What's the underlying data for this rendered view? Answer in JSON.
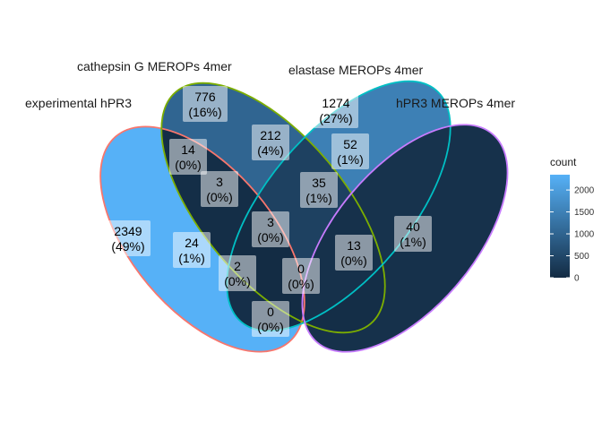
{
  "sets": [
    {
      "name": "experimental hPR3",
      "stroke": "#F8766D"
    },
    {
      "name": "cathepsin G MEROPs 4mer",
      "stroke": "#7CAE00"
    },
    {
      "name": "elastase MEROPs 4mer",
      "stroke": "#00BFC4"
    },
    {
      "name": "hPR3 MEROPs 4mer",
      "stroke": "#C77CFF"
    }
  ],
  "regions": [
    {
      "sets": [
        "experimental hPR3"
      ],
      "count": "2349",
      "percent": "(49%)",
      "value": 2349
    },
    {
      "sets": [
        "cathepsin G MEROPs 4mer"
      ],
      "count": "776",
      "percent": "(16%)",
      "value": 776
    },
    {
      "sets": [
        "elastase MEROPs 4mer"
      ],
      "count": "1274",
      "percent": "(27%)",
      "value": 1274
    },
    {
      "sets": [
        "hPR3 MEROPs 4mer"
      ],
      "count": "40",
      "percent": "(1%)",
      "value": 40
    },
    {
      "sets": [
        "experimental hPR3",
        "cathepsin G MEROPs 4mer"
      ],
      "count": "14",
      "percent": "(0%)",
      "value": 14
    },
    {
      "sets": [
        "cathepsin G MEROPs 4mer",
        "elastase MEROPs 4mer"
      ],
      "count": "212",
      "percent": "(4%)",
      "value": 212
    },
    {
      "sets": [
        "elastase MEROPs 4mer",
        "hPR3 MEROPs 4mer"
      ],
      "count": "52",
      "percent": "(1%)",
      "value": 52
    },
    {
      "sets": [
        "experimental hPR3",
        "cathepsin G MEROPs 4mer",
        "elastase MEROPs 4mer"
      ],
      "count": "3",
      "percent": "(0%)",
      "value": 3
    },
    {
      "sets": [
        "cathepsin G MEROPs 4mer",
        "elastase MEROPs 4mer",
        "hPR3 MEROPs 4mer"
      ],
      "count": "35",
      "percent": "(1%)",
      "value": 35
    },
    {
      "sets": [
        "experimental hPR3",
        "elastase MEROPs 4mer"
      ],
      "count": "24",
      "percent": "(1%)",
      "value": 24
    },
    {
      "sets": [
        "experimental hPR3",
        "cathepsin G MEROPs 4mer",
        "elastase MEROPs 4mer",
        "hPR3 MEROPs 4mer"
      ],
      "count": "3",
      "percent": "(0%)",
      "value": 3
    },
    {
      "sets": [
        "cathepsin G MEROPs 4mer",
        "hPR3 MEROPs 4mer"
      ],
      "count": "13",
      "percent": "(0%)",
      "value": 13
    },
    {
      "sets": [
        "experimental hPR3",
        "elastase MEROPs 4mer",
        "hPR3 MEROPs 4mer"
      ],
      "count": "2",
      "percent": "(0%)",
      "value": 2
    },
    {
      "sets": [
        "experimental hPR3",
        "cathepsin G MEROPs 4mer",
        "hPR3 MEROPs 4mer"
      ],
      "count": "0",
      "percent": "(0%)",
      "value": 0
    },
    {
      "sets": [
        "experimental hPR3",
        "hPR3 MEROPs 4mer"
      ],
      "count": "0",
      "percent": "(0%)",
      "value": 0
    }
  ],
  "legend": {
    "title": "count",
    "ticks": [
      "2000",
      "1500",
      "1000",
      "500",
      "0"
    ],
    "tick_values": [
      2000,
      1500,
      1000,
      500,
      0
    ],
    "min": 0,
    "max": 2349,
    "color_low": "#132B43",
    "color_high": "#56B1F7"
  }
}
